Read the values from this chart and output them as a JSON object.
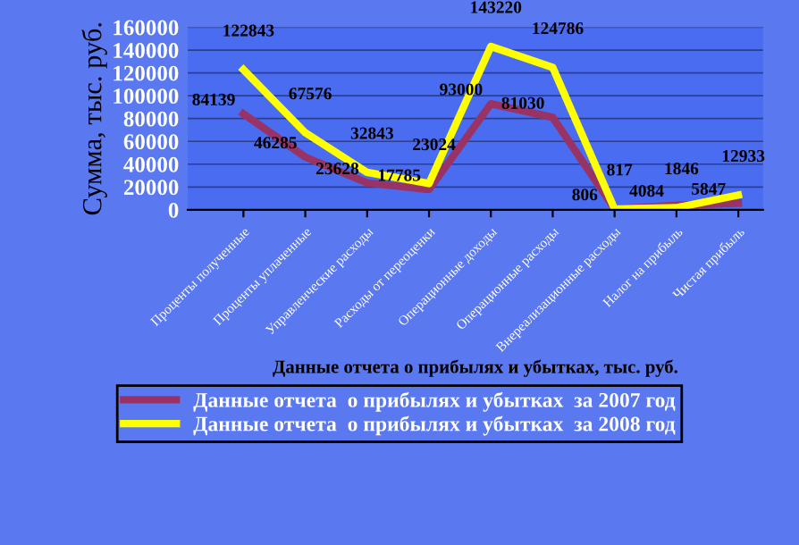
{
  "chart_data": {
    "type": "line",
    "categories": [
      "Проценты полученные",
      "Проценты уплаченные",
      "Управленческие расходы",
      "Расходы от переоценки",
      "Операционные доходы",
      "Операционные расходы",
      "Внереализационные расходы",
      "Налог на прибыль",
      "Чистая прибыль"
    ],
    "series": [
      {
        "name": "Данные отчета  о прибылях и убытках  за 2007 год",
        "color": "#993366",
        "values": [
          84139,
          46285,
          23628,
          17785,
          93000,
          81030,
          806,
          4084,
          5847
        ]
      },
      {
        "name": "Данные отчета  о прибылях и убытках  за 2008 год",
        "color": "#ffff00",
        "values": [
          122843,
          67576,
          32843,
          23024,
          143220,
          124786,
          817,
          1846,
          12933
        ]
      }
    ],
    "xlabel": "Данные отчета о прибылях и убытках, тыс. руб.",
    "ylabel": "Сумма, тыс. руб.",
    "ylim": [
      0,
      160000
    ],
    "yticks": [
      0,
      20000,
      40000,
      60000,
      80000,
      100000,
      120000,
      140000,
      160000
    ],
    "grid": "y",
    "legend": "bottom",
    "data_labels": true,
    "marker": "none",
    "line_style": "solid"
  }
}
